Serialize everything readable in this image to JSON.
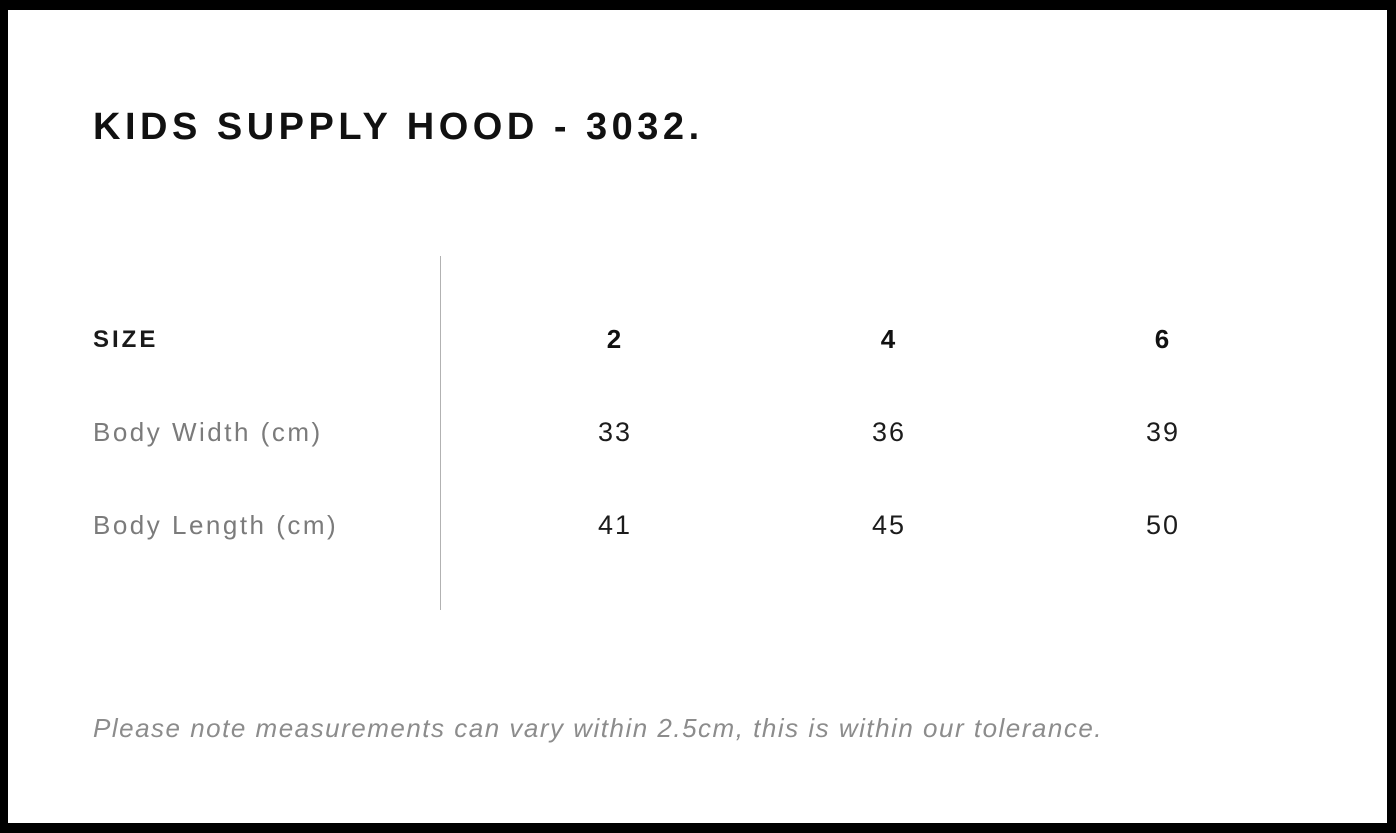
{
  "header": {
    "title": "KIDS SUPPLY HOOD - 3032."
  },
  "table": {
    "size_label": "SIZE",
    "sizes": [
      "2",
      "4",
      "6"
    ],
    "rows": [
      {
        "label": "Body Width (cm)",
        "values": [
          "33",
          "36",
          "39"
        ]
      },
      {
        "label": "Body Length (cm)",
        "values": [
          "41",
          "45",
          "50"
        ]
      }
    ]
  },
  "footer": {
    "note": "Please note measurements can vary within 2.5cm, this is within our tolerance."
  },
  "colors": {
    "background": "#ffffff",
    "frame_border": "#000000",
    "title_text": "#111111",
    "value_text": "#1c1c1c",
    "label_text": "#7b7b7b",
    "note_text": "#8c8c8c",
    "divider": "#b2b2b2"
  }
}
